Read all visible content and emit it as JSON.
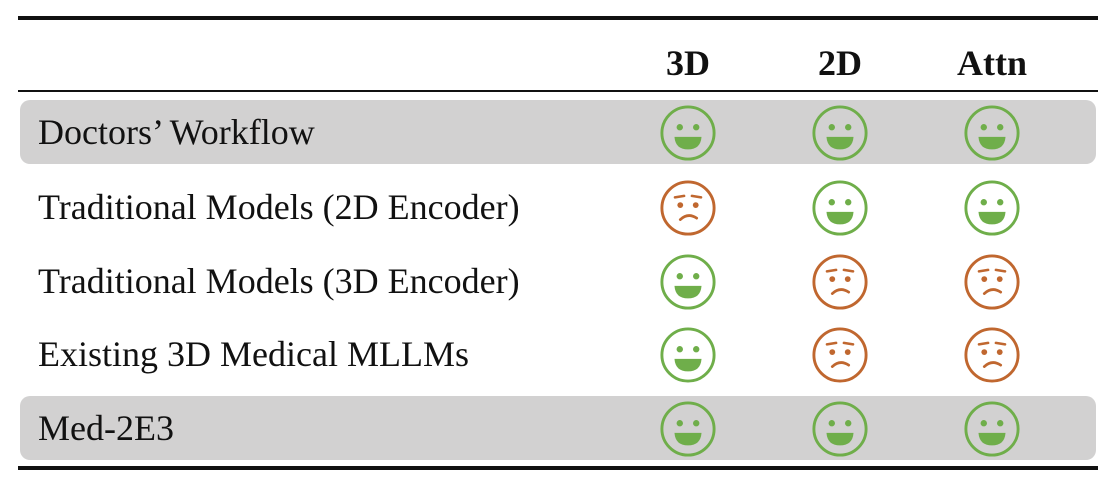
{
  "columns": [
    "3D",
    "2D",
    "Attn"
  ],
  "rows": [
    {
      "label": "Doctors’ Workflow",
      "highlight": true,
      "faces": [
        "happy",
        "happy",
        "happy"
      ]
    },
    {
      "label": "Traditional Models (2D Encoder)",
      "highlight": false,
      "faces": [
        "confused",
        "happy",
        "happy"
      ]
    },
    {
      "label": "Traditional Models (3D Encoder)",
      "highlight": false,
      "faces": [
        "happy",
        "confused",
        "confused"
      ]
    },
    {
      "label": "Existing 3D Medical MLLMs",
      "highlight": false,
      "faces": [
        "happy",
        "confused",
        "confused"
      ]
    },
    {
      "label": "Med-2E3",
      "highlight": true,
      "faces": [
        "happy",
        "happy",
        "happy"
      ]
    }
  ],
  "colors": {
    "happy": "#6fae4a",
    "confused": "#c0672f",
    "highlight_band": "#d2d1d1"
  }
}
